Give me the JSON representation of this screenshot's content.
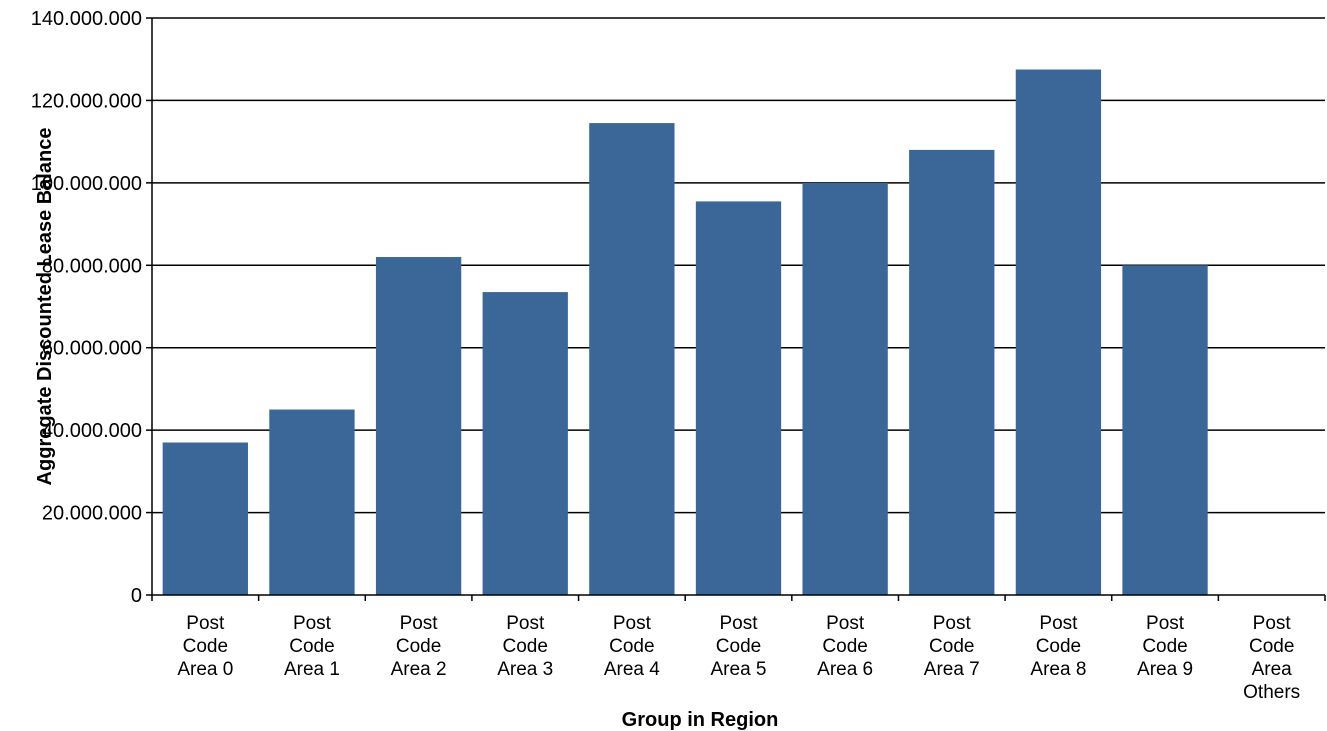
{
  "chart_data": {
    "type": "bar",
    "title": "",
    "xlabel": "Group in Region",
    "ylabel": "Aggregate Discounted Lease Balance",
    "categories": [
      [
        "Post",
        "Code",
        "Area 0"
      ],
      [
        "Post",
        "Code",
        "Area 1"
      ],
      [
        "Post",
        "Code",
        "Area 2"
      ],
      [
        "Post",
        "Code",
        "Area 3"
      ],
      [
        "Post",
        "Code",
        "Area 4"
      ],
      [
        "Post",
        "Code",
        "Area 5"
      ],
      [
        "Post",
        "Code",
        "Area 6"
      ],
      [
        "Post",
        "Code",
        "Area 7"
      ],
      [
        "Post",
        "Code",
        "Area 8"
      ],
      [
        "Post",
        "Code",
        "Area 9"
      ],
      [
        "Post",
        "Code",
        "Area",
        "Others"
      ]
    ],
    "values": [
      37000000,
      45000000,
      82000000,
      73500000,
      114500000,
      95500000,
      100000000,
      108000000,
      127500000,
      80000000,
      0
    ],
    "ylim": [
      0,
      140000000
    ],
    "yticks": [
      0,
      20000000,
      40000000,
      60000000,
      80000000,
      100000000,
      120000000,
      140000000
    ],
    "ytick_labels": [
      "0",
      "20.000.000",
      "40.000.000",
      "60.000.000",
      "80.000.000",
      "100.000.000",
      "120.000.000",
      "140.000.000"
    ],
    "grid": true,
    "colors": {
      "bar": "#3A6698",
      "grid": "#000000"
    }
  }
}
